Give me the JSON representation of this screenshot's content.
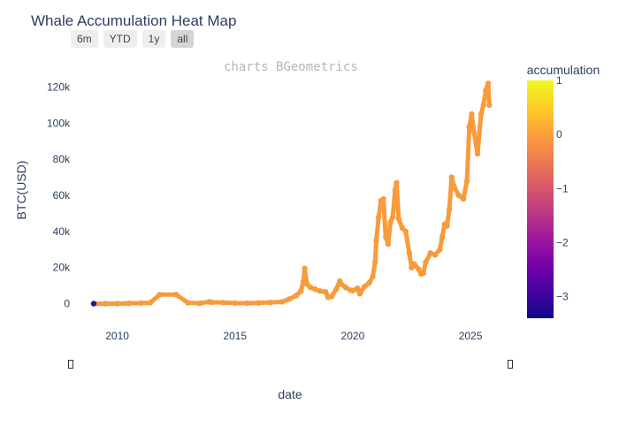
{
  "title": "Whale Accumulation Heat Map",
  "watermark": "charts BGeometrics",
  "range_buttons": [
    {
      "label": "6m",
      "active": false
    },
    {
      "label": "YTD",
      "active": false
    },
    {
      "label": "1y",
      "active": false
    },
    {
      "label": "all",
      "active": true
    }
  ],
  "colors": {
    "accent": "#2a3f5f",
    "point": "#f79b3b",
    "colorscale": [
      "#0d0887",
      "#46039f",
      "#7201a8",
      "#9c179e",
      "#bd3786",
      "#d8576b",
      "#ed7953",
      "#fb9f3a",
      "#fdca26",
      "#f0f921"
    ]
  },
  "chart_data": {
    "type": "scatter",
    "title": "Whale Accumulation Heat Map",
    "xlabel": "date",
    "ylabel": "BTC(USD)",
    "xlim": [
      2008.4,
      2026.8
    ],
    "ylim": [
      -12000,
      130000
    ],
    "x_ticks": [
      2010,
      2015,
      2020,
      2025
    ],
    "x_tick_labels": [
      "2010",
      "2015",
      "2020",
      "2025"
    ],
    "y_ticks": [
      0,
      20000,
      40000,
      60000,
      80000,
      100000,
      120000
    ],
    "y_tick_labels": [
      "0",
      "20k",
      "40k",
      "60k",
      "80k",
      "100k",
      "120k"
    ],
    "grid": false,
    "colorbar": {
      "title": "accumulation",
      "range": [
        -3.4,
        1
      ],
      "ticks": [
        1,
        0,
        -1,
        -2,
        -3
      ],
      "tick_labels": [
        "1",
        "0",
        "−1",
        "−2",
        "−3"
      ]
    },
    "series": [
      {
        "x": [
          2009.0,
          2009.5,
          2010.0,
          2010.5,
          2011.0,
          2011.4,
          2011.8,
          2012.5,
          2013.0,
          2013.5,
          2013.9,
          2014.0,
          2014.5,
          2015.0,
          2015.5,
          2016.0,
          2016.5,
          2017.0,
          2017.3,
          2017.6,
          2017.8,
          2017.9,
          2017.96,
          2018.05,
          2018.2,
          2018.4,
          2018.6,
          2018.85,
          2018.95,
          2019.1,
          2019.3,
          2019.45,
          2019.5,
          2019.7,
          2019.9,
          2020.0,
          2020.2,
          2020.3,
          2020.5,
          2020.7,
          2020.85,
          2020.95,
          2021.0,
          2021.1,
          2021.2,
          2021.3,
          2021.4,
          2021.5,
          2021.6,
          2021.7,
          2021.8,
          2021.86,
          2021.95,
          2022.1,
          2022.25,
          2022.4,
          2022.5,
          2022.6,
          2022.8,
          2022.9,
          2023.0,
          2023.1,
          2023.3,
          2023.5,
          2023.7,
          2023.8,
          2023.9,
          2024.0,
          2024.1,
          2024.2,
          2024.3,
          2024.5,
          2024.7,
          2024.85,
          2024.95,
          2025.05,
          2025.15,
          2025.3,
          2025.45,
          2025.55,
          2025.65,
          2025.75,
          2025.8
        ],
        "y": [
          0,
          0,
          0,
          200,
          300,
          500,
          5000,
          5000,
          500,
          200,
          1000,
          800,
          600,
          300,
          250,
          400,
          650,
          1000,
          2500,
          4500,
          7000,
          12000,
          19500,
          11000,
          9000,
          8000,
          7000,
          6500,
          3500,
          4000,
          8000,
          12500,
          11000,
          9000,
          7500,
          7200,
          8500,
          5500,
          9500,
          11500,
          15000,
          23000,
          35000,
          48000,
          57000,
          58000,
          37000,
          33000,
          45000,
          48000,
          63000,
          67000,
          47000,
          42000,
          40000,
          28000,
          20000,
          22000,
          19000,
          16500,
          17000,
          23000,
          28000,
          27000,
          30000,
          37000,
          44000,
          43000,
          52000,
          70000,
          65000,
          60000,
          58000,
          68000,
          98000,
          105000,
          95000,
          83000,
          105000,
          110000,
          118000,
          122000,
          110000
        ],
        "accumulation": [
          -3,
          0,
          0,
          0,
          0,
          0,
          0,
          0,
          0,
          0,
          0,
          0,
          0,
          0,
          0,
          0,
          0,
          0,
          0,
          0,
          0,
          0,
          0,
          0,
          0,
          0,
          0,
          0,
          0,
          0,
          0,
          0,
          0,
          0,
          0,
          0,
          0,
          0,
          0,
          0,
          0,
          0,
          0,
          0,
          0,
          0,
          0,
          0,
          0,
          0,
          0,
          0,
          0,
          0,
          0,
          0,
          0,
          0,
          0,
          0,
          0,
          0,
          0,
          0,
          0,
          0,
          0,
          0,
          0,
          0,
          0,
          0,
          0,
          0,
          0,
          0,
          0,
          0,
          0,
          0,
          0,
          0,
          0
        ]
      }
    ]
  }
}
